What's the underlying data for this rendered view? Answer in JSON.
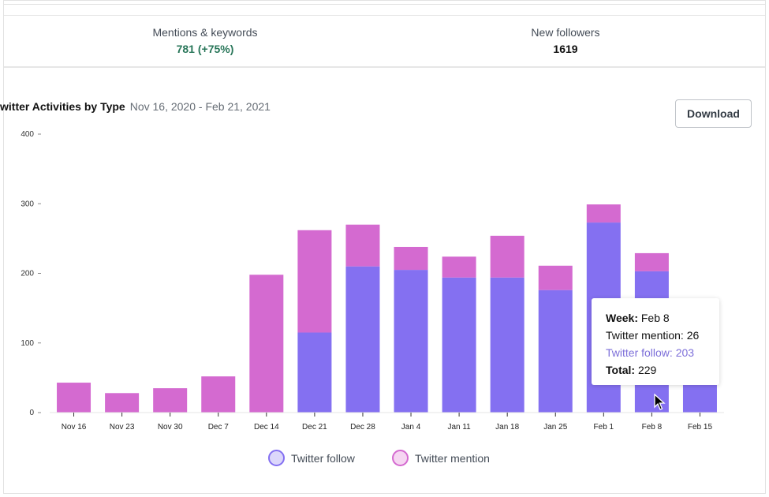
{
  "stats": [
    {
      "label": "Mentions & keywords",
      "value": "781 (+75%)",
      "highlight": true
    },
    {
      "label": "New followers",
      "value": "1619",
      "highlight": false
    }
  ],
  "chart_header": {
    "title": "witter Activities by Type",
    "date_range": "Nov 16, 2020 - Feb 21, 2021",
    "download_label": "Download"
  },
  "chart_data": {
    "type": "bar",
    "stacked": true,
    "title": "witter Activities by Type",
    "ylim": [
      0,
      400
    ],
    "yticks": [
      0,
      100,
      200,
      300,
      400
    ],
    "ytick_labels": [
      "0",
      "100",
      "200",
      "300",
      "400"
    ],
    "categories": [
      "Nov 16",
      "Nov 23",
      "Nov 30",
      "Dec 7",
      "Dec 14",
      "Dec 21",
      "Dec 28",
      "Jan 4",
      "Jan 11",
      "Jan 18",
      "Jan 25",
      "Feb 1",
      "Feb 8",
      "Feb 15"
    ],
    "series": [
      {
        "name": "Twitter follow",
        "color": "#8470f1",
        "values": [
          0,
          0,
          0,
          0,
          0,
          115,
          210,
          205,
          194,
          194,
          176,
          273,
          203,
          40
        ]
      },
      {
        "name": "Twitter mention",
        "color": "#d46ad0",
        "values": [
          43,
          28,
          35,
          52,
          198,
          147,
          60,
          33,
          30,
          60,
          35,
          26,
          26,
          0
        ]
      }
    ],
    "grid": false,
    "legend_position": "bottom"
  },
  "tooltip": {
    "week_label": "Week:",
    "week_value": "Feb 8",
    "mention_text": "Twitter mention: 26",
    "follow_text": "Twitter follow: 203",
    "total_label": "Total:",
    "total_value": "229",
    "follow_color": "#7d6fd9"
  },
  "legend": [
    {
      "label": "Twitter follow",
      "fill": "#dcd7fb",
      "stroke": "#8470f1"
    },
    {
      "label": "Twitter mention",
      "fill": "#f6d6f2",
      "stroke": "#d46ad0"
    }
  ]
}
